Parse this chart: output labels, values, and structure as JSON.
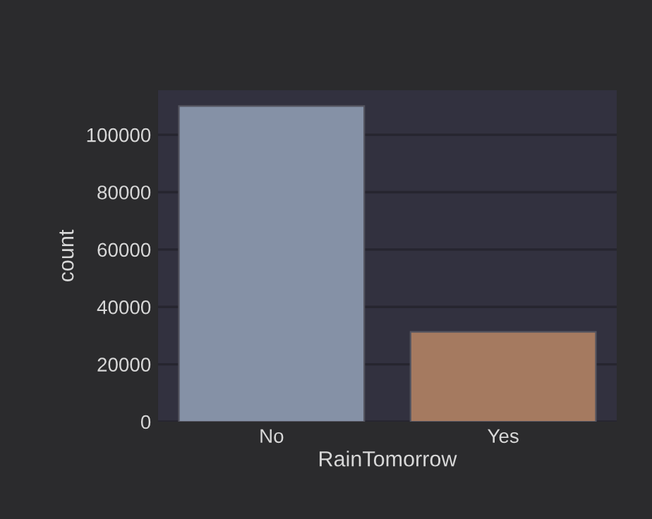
{
  "chart_data": {
    "type": "bar",
    "xlabel": "RainTomorrow",
    "ylabel": "count",
    "categories": [
      "No",
      "Yes"
    ],
    "values": [
      110000,
      31300
    ],
    "colors": [
      "#8591a6",
      "#a57a60"
    ],
    "ylim": [
      0,
      115500
    ],
    "yticks": [
      0,
      20000,
      40000,
      60000,
      80000,
      100000
    ],
    "grid": "y"
  }
}
